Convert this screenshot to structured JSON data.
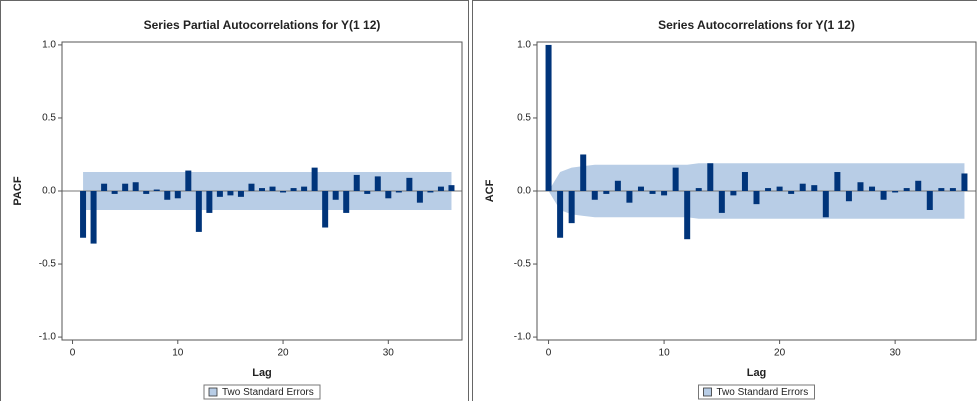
{
  "chart_data": [
    {
      "type": "bar",
      "title": "Series Partial Autocorrelations for Y(1 12)",
      "x_label": "Lag",
      "y_label": "PACF",
      "x": [
        1,
        2,
        3,
        4,
        5,
        6,
        7,
        8,
        9,
        10,
        11,
        12,
        13,
        14,
        15,
        16,
        17,
        18,
        19,
        20,
        21,
        22,
        23,
        24,
        25,
        26,
        27,
        28,
        29,
        30,
        31,
        32,
        33,
        34,
        35,
        36
      ],
      "values": [
        -0.32,
        -0.36,
        0.05,
        -0.02,
        0.05,
        0.06,
        -0.02,
        0.01,
        -0.06,
        -0.05,
        0.14,
        -0.28,
        -0.15,
        -0.04,
        -0.03,
        -0.04,
        0.05,
        0.02,
        0.03,
        -0.01,
        0.02,
        0.03,
        0.16,
        -0.25,
        -0.06,
        -0.15,
        0.11,
        -0.02,
        0.1,
        -0.05,
        -0.01,
        0.09,
        -0.08,
        -0.01,
        0.03,
        0.04
      ],
      "color": "#00347a",
      "band": {
        "name": "Two Standard Errors",
        "color": "#b8cde6",
        "x": [
          1,
          36
        ],
        "upper": [
          0.13,
          0.13
        ],
        "lower": [
          -0.13,
          -0.13
        ]
      },
      "xlim": [
        -1,
        37
      ],
      "ylim": [
        -1.02,
        1.02
      ],
      "xticks": [
        0,
        10,
        20,
        30
      ],
      "yticks": [
        {
          "value": 1,
          "label": "1.0"
        },
        {
          "value": 0.5,
          "label": "0.5"
        },
        {
          "value": 0,
          "label": "0.0"
        },
        {
          "value": -0.5,
          "label": "-0.5"
        },
        {
          "value": -1,
          "label": "-1.0"
        }
      ]
    },
    {
      "type": "bar",
      "title": "Series Autocorrelations for Y(1 12)",
      "x_label": "Lag",
      "y_label": "ACF",
      "x": [
        0,
        1,
        2,
        3,
        4,
        5,
        6,
        7,
        8,
        9,
        10,
        11,
        12,
        13,
        14,
        15,
        16,
        17,
        18,
        19,
        20,
        21,
        22,
        23,
        24,
        25,
        26,
        27,
        28,
        29,
        30,
        31,
        32,
        33,
        34,
        35,
        36
      ],
      "values": [
        1,
        -0.32,
        -0.22,
        0.25,
        -0.06,
        -0.02,
        0.07,
        -0.08,
        0.03,
        -0.02,
        -0.03,
        0.16,
        -0.33,
        0.02,
        0.19,
        -0.15,
        -0.03,
        0.13,
        -0.09,
        0.02,
        0.03,
        -0.02,
        0.05,
        0.04,
        -0.18,
        0.13,
        -0.07,
        0.06,
        0.03,
        -0.06,
        -0.01,
        0.02,
        0.07,
        -0.13,
        0.02,
        0.02,
        0.12
      ],
      "color": "#00347a",
      "band": {
        "name": "Two Standard Errors",
        "color": "#b8cde6",
        "x": [
          0,
          1,
          2,
          3,
          4,
          5,
          6,
          7,
          8,
          9,
          10,
          11,
          12,
          13,
          14,
          15,
          16,
          17,
          18,
          19,
          20,
          21,
          22,
          23,
          24,
          25,
          26,
          27,
          28,
          29,
          30,
          31,
          32,
          33,
          34,
          35,
          36
        ],
        "upper": [
          0,
          0.13,
          0.16,
          0.17,
          0.18,
          0.18,
          0.18,
          0.18,
          0.18,
          0.18,
          0.18,
          0.18,
          0.18,
          0.19,
          0.19,
          0.19,
          0.19,
          0.19,
          0.19,
          0.19,
          0.19,
          0.19,
          0.19,
          0.19,
          0.19,
          0.19,
          0.19,
          0.19,
          0.19,
          0.19,
          0.19,
          0.19,
          0.19,
          0.19,
          0.19,
          0.19,
          0.19
        ],
        "lower": [
          0,
          -0.13,
          -0.16,
          -0.17,
          -0.18,
          -0.18,
          -0.18,
          -0.18,
          -0.18,
          -0.18,
          -0.18,
          -0.18,
          -0.18,
          -0.19,
          -0.19,
          -0.19,
          -0.19,
          -0.19,
          -0.19,
          -0.19,
          -0.19,
          -0.19,
          -0.19,
          -0.19,
          -0.19,
          -0.19,
          -0.19,
          -0.19,
          -0.19,
          -0.19,
          -0.19,
          -0.19,
          -0.19,
          -0.19,
          -0.19,
          -0.19,
          -0.19
        ]
      },
      "xlim": [
        -1,
        37
      ],
      "ylim": [
        -1.02,
        1.02
      ],
      "xticks": [
        0,
        10,
        20,
        30
      ],
      "yticks": [
        {
          "value": 1,
          "label": "1.0"
        },
        {
          "value": 0.5,
          "label": "0.5"
        },
        {
          "value": 0,
          "label": "0.0"
        },
        {
          "value": -0.5,
          "label": "-0.5"
        },
        {
          "value": -1,
          "label": "-1.0"
        }
      ]
    }
  ]
}
